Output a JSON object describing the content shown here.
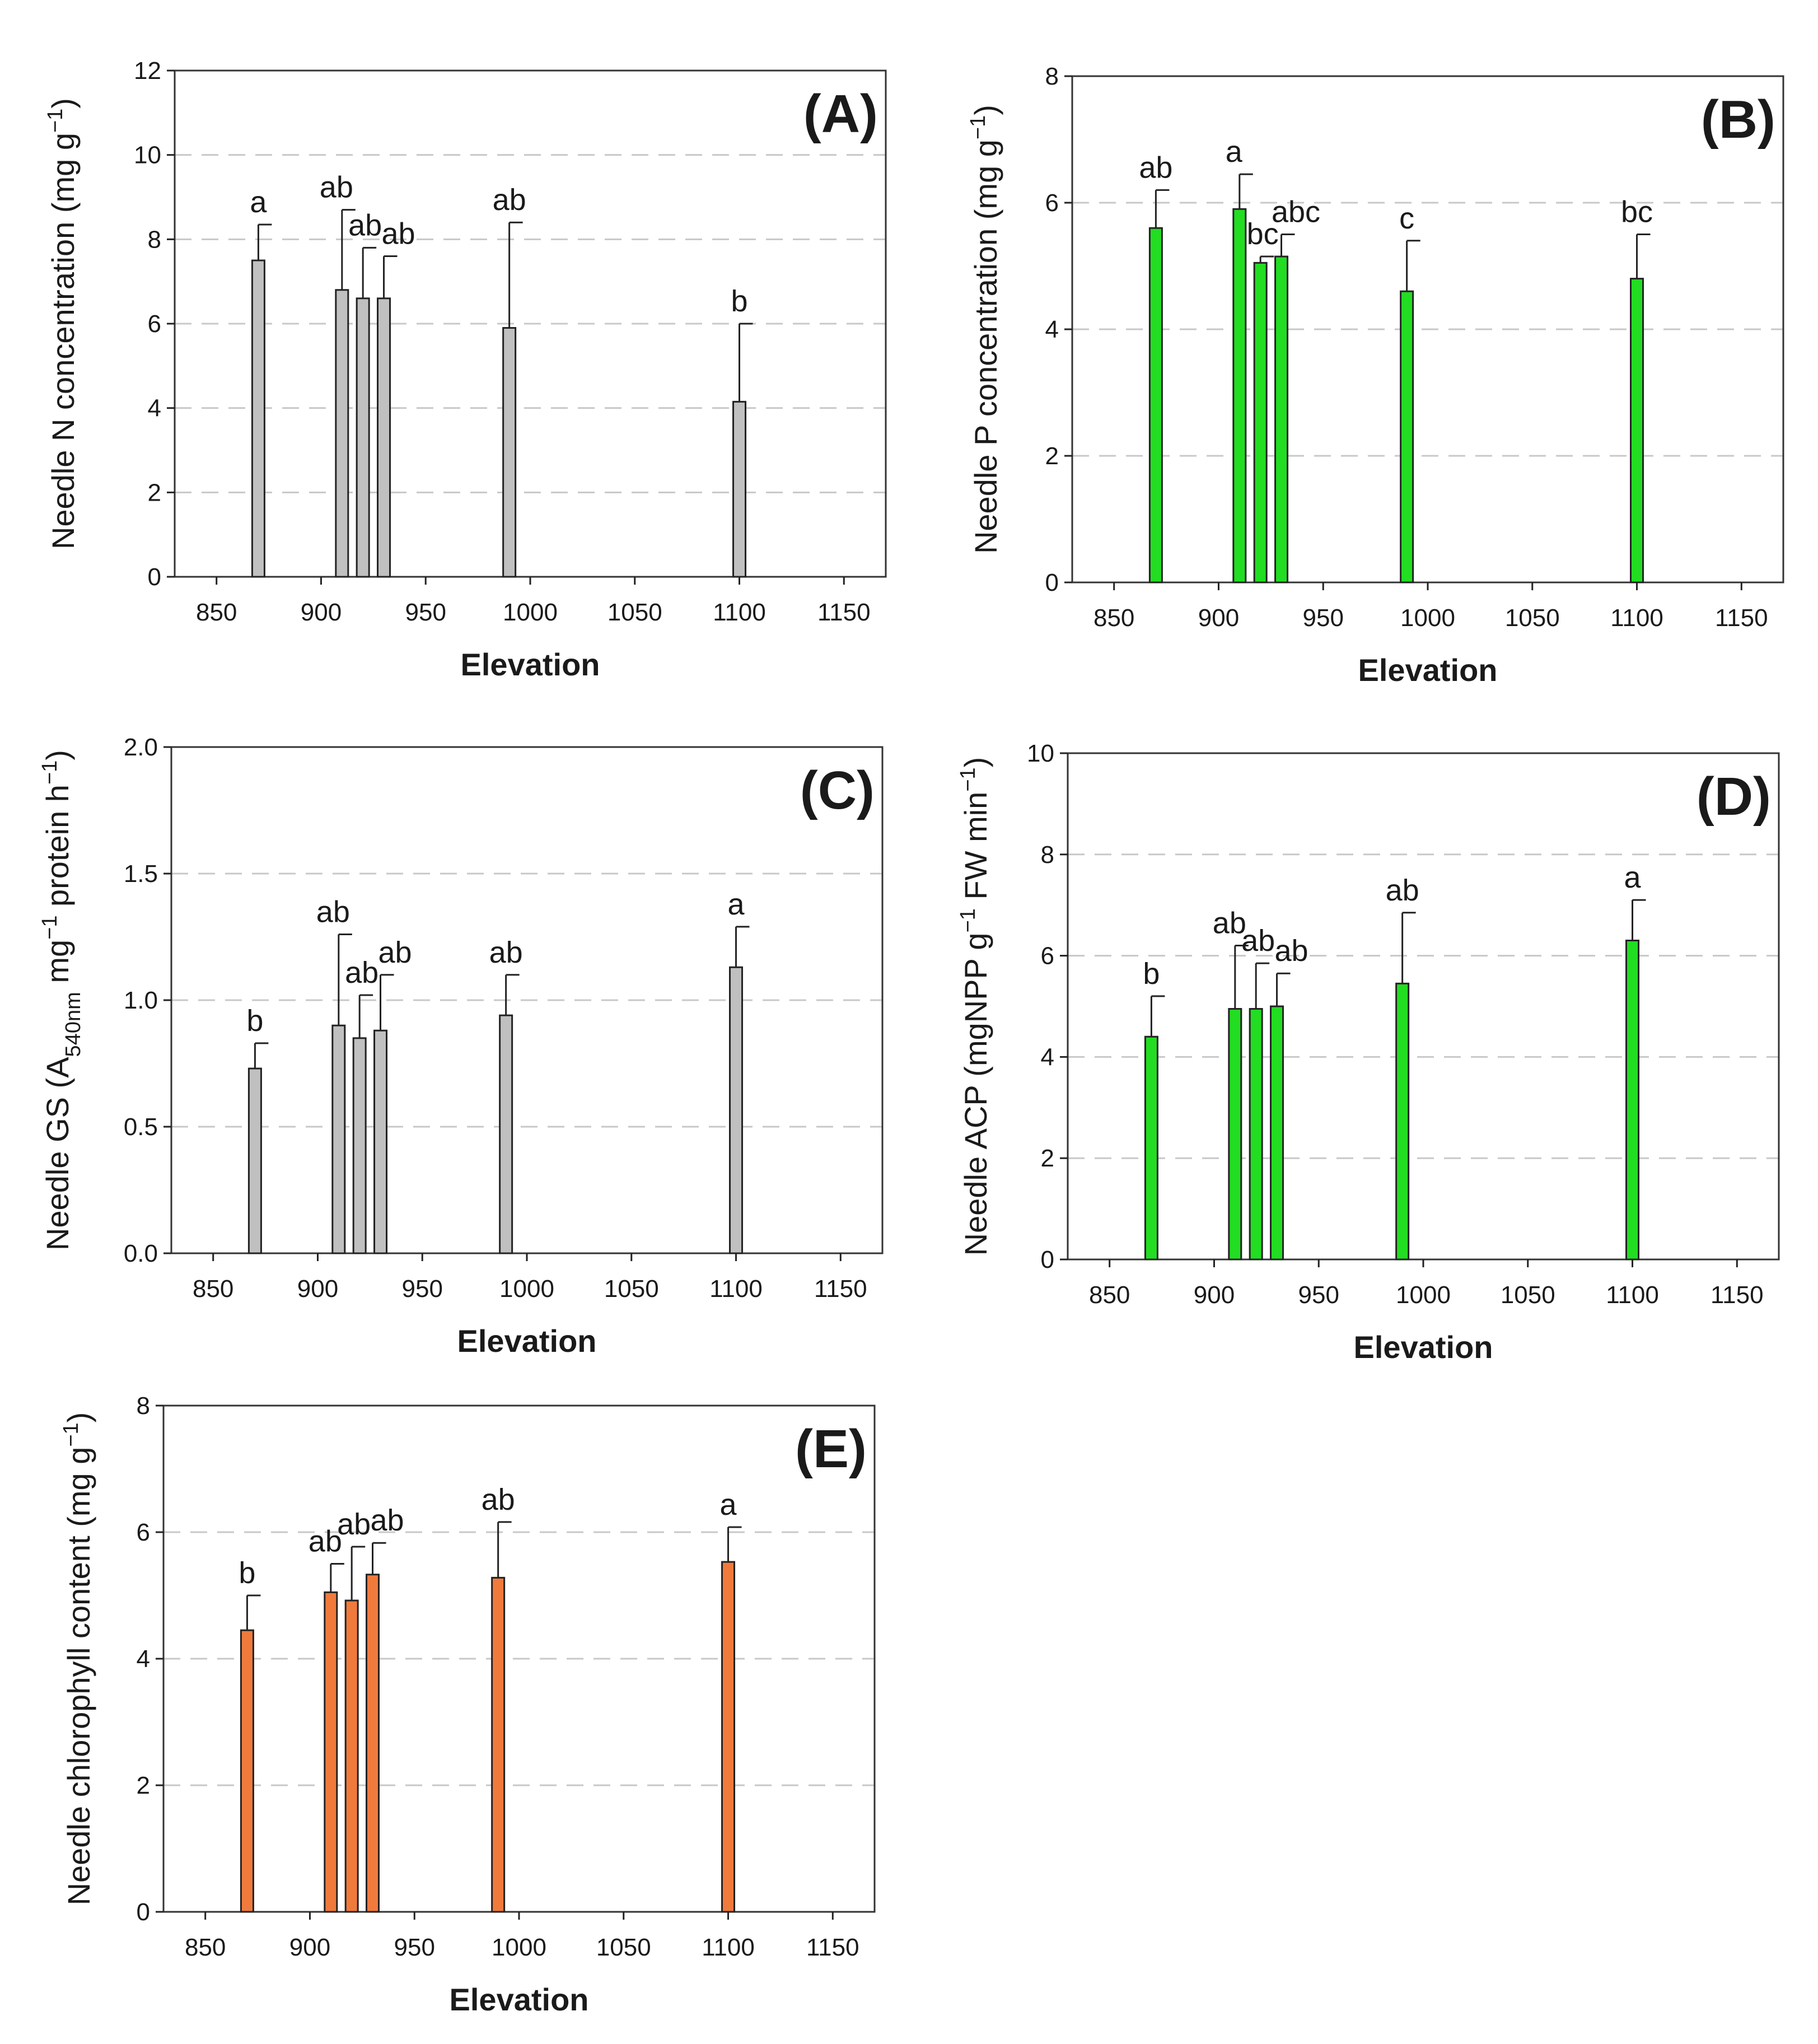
{
  "colors": {
    "gray": "#c0c0c0",
    "green": "#22dd22",
    "orange": "#f07a3c"
  },
  "chart_data": [
    {
      "type": "bar",
      "panel_label": "(A)",
      "color": "gray",
      "xlabel": "Elevation",
      "ylabel_parts": [
        "Needle N concentration (mg g",
        "−1",
        ")"
      ],
      "x": [
        870,
        910,
        920,
        930,
        990,
        1100
      ],
      "values": [
        7.5,
        6.8,
        6.6,
        6.6,
        5.9,
        4.15
      ],
      "errors": [
        0.85,
        1.9,
        1.2,
        1.0,
        2.5,
        1.85
      ],
      "letters": [
        "a",
        "ab",
        "ab",
        "ab",
        "ab",
        "b"
      ],
      "xlim": [
        830,
        1170
      ],
      "xticks": [
        850,
        900,
        950,
        1000,
        1050,
        1100,
        1150
      ],
      "ylim": [
        0,
        12
      ],
      "yticks": [
        0,
        2,
        4,
        6,
        8,
        10,
        12
      ],
      "ytick_labels": [
        "0",
        "2",
        "4",
        "6",
        "8",
        "10",
        "12"
      ],
      "grid": "dashed horizontal"
    },
    {
      "type": "bar",
      "panel_label": "(B)",
      "color": "green",
      "xlabel": "Elevation",
      "ylabel_parts": [
        "Needle P concentration (mg g",
        "−1",
        ")"
      ],
      "x": [
        870,
        910,
        920,
        930,
        990,
        1100
      ],
      "values": [
        5.6,
        5.9,
        5.05,
        5.15,
        4.6,
        4.8
      ],
      "errors": [
        0.6,
        0.55,
        0.1,
        0.35,
        0.8,
        0.7
      ],
      "letters": [
        "ab",
        "a",
        "bc",
        "abc",
        "c",
        "bc"
      ],
      "xlim": [
        830,
        1170
      ],
      "xticks": [
        850,
        900,
        950,
        1000,
        1050,
        1100,
        1150
      ],
      "ylim": [
        0,
        8
      ],
      "yticks": [
        0,
        2,
        4,
        6,
        8
      ],
      "ytick_labels": [
        "0",
        "2",
        "4",
        "6",
        "8"
      ],
      "grid": "dashed horizontal"
    },
    {
      "type": "bar",
      "panel_label": "(C)",
      "color": "gray",
      "xlabel": "Elevation",
      "ylabel_parts": [
        "Needle GS (A",
        "540nm",
        " mg",
        "−1",
        " protein h",
        "−1",
        ")"
      ],
      "x": [
        870,
        910,
        920,
        930,
        990,
        1100
      ],
      "values": [
        0.73,
        0.9,
        0.85,
        0.88,
        0.94,
        1.13
      ],
      "errors": [
        0.1,
        0.36,
        0.17,
        0.22,
        0.16,
        0.16
      ],
      "letters": [
        "b",
        "ab",
        "ab",
        "ab",
        "ab",
        "a"
      ],
      "xlim": [
        830,
        1170
      ],
      "xticks": [
        850,
        900,
        950,
        1000,
        1050,
        1100,
        1150
      ],
      "ylim": [
        0,
        2
      ],
      "yticks": [
        0,
        0.5,
        1,
        1.5,
        2
      ],
      "ytick_labels": [
        "0.0",
        "0.5",
        "1.0",
        "1.5",
        "2.0"
      ],
      "grid": "dashed horizontal"
    },
    {
      "type": "bar",
      "panel_label": "(D)",
      "color": "green",
      "xlabel": "Elevation",
      "ylabel_parts": [
        "Needle ACP (mgNPP g",
        "−1",
        " FW min",
        "−1",
        ")"
      ],
      "x": [
        870,
        910,
        920,
        930,
        990,
        1100
      ],
      "values": [
        4.4,
        4.95,
        4.95,
        5.0,
        5.45,
        6.3
      ],
      "errors": [
        0.8,
        1.25,
        0.9,
        0.65,
        1.4,
        0.8
      ],
      "letters": [
        "b",
        "ab",
        "ab",
        "ab",
        "ab",
        "a"
      ],
      "xlim": [
        830,
        1170
      ],
      "xticks": [
        850,
        900,
        950,
        1000,
        1050,
        1100,
        1150
      ],
      "ylim": [
        0,
        10
      ],
      "yticks": [
        0,
        2,
        4,
        6,
        8,
        10
      ],
      "ytick_labels": [
        "0",
        "2",
        "4",
        "6",
        "8",
        "10"
      ],
      "grid": "dashed horizontal"
    },
    {
      "type": "bar",
      "panel_label": "(E)",
      "color": "orange",
      "xlabel": "Elevation",
      "ylabel_parts": [
        "Needle chlorophyll content (mg g",
        "−1",
        ")"
      ],
      "x": [
        870,
        910,
        920,
        930,
        990,
        1100
      ],
      "values": [
        4.45,
        5.05,
        4.92,
        5.33,
        5.28,
        5.53
      ],
      "errors": [
        0.55,
        0.45,
        0.85,
        0.5,
        0.88,
        0.55
      ],
      "letters": [
        "b",
        "ab",
        "ab",
        "ab",
        "ab",
        "a"
      ],
      "xlim": [
        830,
        1170
      ],
      "xticks": [
        850,
        900,
        950,
        1000,
        1050,
        1100,
        1150
      ],
      "ylim": [
        0,
        8
      ],
      "yticks": [
        0,
        2,
        4,
        6,
        8
      ],
      "ytick_labels": [
        "0",
        "2",
        "4",
        "6",
        "8"
      ],
      "grid": "dashed horizontal"
    }
  ]
}
